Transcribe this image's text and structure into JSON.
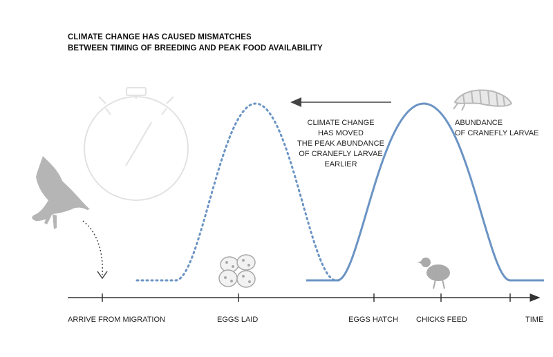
{
  "title": {
    "line1": "CLIMATE CHANGE HAS CAUSED MISMATCHES",
    "line2": "BETWEEN TIMING OF BREEDING AND PEAK FOOD AVAILABILITY"
  },
  "annotations": {
    "moved_lines": [
      "CLIMATE CHANGE",
      "HAS MOVED",
      "THE PEAK ABUNDANCE",
      "OF CRANEFLY LARVAE",
      "EARLIER"
    ],
    "abundance_lines": [
      "ABUNDANCE",
      "OF CRANEFLY LARVAE"
    ]
  },
  "timeline": {
    "labels": [
      "ARRIVE FROM MIGRATION",
      "EGGS LAID",
      "EGGS HATCH",
      "CHICKS FEED",
      "TIME"
    ]
  },
  "colors": {
    "curve": "#6b94c4",
    "axis": "#333333",
    "illustration": "#b0b0b0",
    "arrow": "#444444"
  },
  "icons": [
    "stopwatch-icon",
    "bird-flying-icon",
    "eggs-icon",
    "chick-icon",
    "larva-icon"
  ]
}
